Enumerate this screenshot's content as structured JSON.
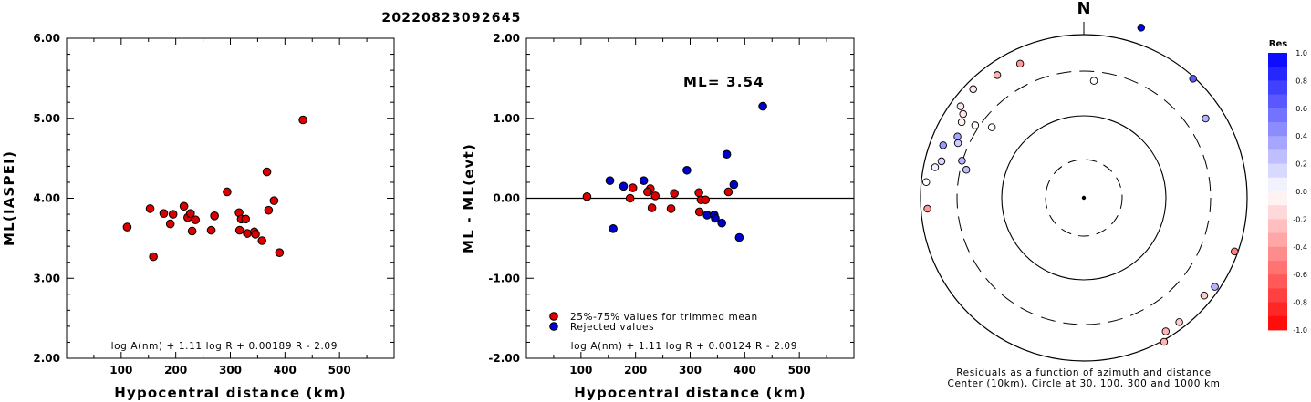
{
  "title": "20220823092645",
  "chart_data": [
    {
      "type": "scatter",
      "xlabel": "Hypocentral distance (km)",
      "ylabel": "ML(IASPEI)",
      "xlim": [
        0,
        600
      ],
      "ylim": [
        2.0,
        6.0
      ],
      "xticks": [
        "100",
        "200",
        "300",
        "400",
        "500"
      ],
      "yticks": [
        "2.00",
        "3.00",
        "4.00",
        "5.00",
        "6.00"
      ],
      "formula": "log A(nm) + 1.11 log R + 0.00189 R - 2.09",
      "series": [
        {
          "color": "#dd0000",
          "points": [
            [
              111,
              3.64
            ],
            [
              153,
              3.87
            ],
            [
              159,
              3.27
            ],
            [
              178,
              3.81
            ],
            [
              190,
              3.68
            ],
            [
              195,
              3.8
            ],
            [
              215,
              3.9
            ],
            [
              222,
              3.76
            ],
            [
              227,
              3.81
            ],
            [
              230,
              3.59
            ],
            [
              236,
              3.73
            ],
            [
              265,
              3.6
            ],
            [
              271,
              3.78
            ],
            [
              294,
              4.08
            ],
            [
              316,
              3.82
            ],
            [
              317,
              3.6
            ],
            [
              320,
              3.74
            ],
            [
              328,
              3.74
            ],
            [
              331,
              3.56
            ],
            [
              344,
              3.58
            ],
            [
              346,
              3.55
            ],
            [
              358,
              3.47
            ],
            [
              367,
              4.33
            ],
            [
              370,
              3.85
            ],
            [
              380,
              3.97
            ],
            [
              390,
              3.32
            ],
            [
              433,
              4.98
            ]
          ]
        }
      ]
    },
    {
      "type": "scatter",
      "xlabel": "Hypocentral distance (km)",
      "ylabel": "ML - ML(evt)",
      "xlim": [
        0,
        600
      ],
      "ylim": [
        -2.0,
        2.0
      ],
      "xticks": [
        "100",
        "200",
        "300",
        "400",
        "500"
      ],
      "yticks": [
        "-2.00",
        "-1.00",
        "0.00",
        "1.00",
        "2.00"
      ],
      "annotation": "ML= 3.54",
      "zero_line": true,
      "formula": "log A(nm) + 1.11 log R + 0.00124 R - 2.09",
      "series": [
        {
          "name": "25%-75% values for trimmed mean",
          "color": "#dd0000",
          "points": [
            [
              111,
              0.02
            ],
            [
              195,
              0.13
            ],
            [
              190,
              0.0
            ],
            [
              227,
              0.12
            ],
            [
              222,
              0.08
            ],
            [
              236,
              0.03
            ],
            [
              230,
              -0.12
            ],
            [
              265,
              -0.13
            ],
            [
              271,
              0.06
            ],
            [
              316,
              0.07
            ],
            [
              317,
              -0.17
            ],
            [
              320,
              -0.02
            ],
            [
              328,
              -0.02
            ],
            [
              370,
              0.08
            ]
          ]
        },
        {
          "name": "Rejected values",
          "color": "#0000cc",
          "points": [
            [
              153,
              0.22
            ],
            [
              159,
              -0.38
            ],
            [
              178,
              0.15
            ],
            [
              215,
              0.22
            ],
            [
              294,
              0.35
            ],
            [
              331,
              -0.21
            ],
            [
              344,
              -0.21
            ],
            [
              346,
              -0.25
            ],
            [
              358,
              -0.31
            ],
            [
              367,
              0.55
            ],
            [
              380,
              0.17
            ],
            [
              390,
              -0.49
            ],
            [
              433,
              1.15
            ]
          ]
        }
      ]
    },
    {
      "type": "polar-scatter",
      "north_label": "N",
      "caption_line1": "Residuals as a function of azimuth and distance",
      "caption_line2": "Center (10km), Circle at 30, 100, 300 and 1000 km",
      "colorbar_title": "Res",
      "colorbar_ticks": [
        "1.0",
        "0.8",
        "0.6",
        "0.4",
        "0.2",
        "0.0",
        "-0.2",
        "-0.4",
        "-0.6",
        "-0.8",
        "-1.0"
      ],
      "stations": [
        {
          "azimuth": 18.6,
          "dist_frac": 1.1,
          "res": 1.0
        },
        {
          "azimuth": 42.5,
          "dist_frac": 0.99,
          "res": 0.65
        },
        {
          "azimuth": 56.9,
          "dist_frac": 0.89,
          "res": 0.3
        },
        {
          "azimuth": 4.9,
          "dist_frac": 0.72,
          "res": 0.0
        },
        {
          "azimuth": -25.4,
          "dist_frac": 0.91,
          "res": -0.4
        },
        {
          "azimuth": -35.2,
          "dist_frac": 0.92,
          "res": -0.3
        },
        {
          "azimuth": -45.5,
          "dist_frac": 0.95,
          "res": -0.1
        },
        {
          "azimuth": -53.4,
          "dist_frac": 0.94,
          "res": -0.1
        },
        {
          "azimuth": -55.2,
          "dist_frac": 0.9,
          "res": -0.1
        },
        {
          "azimuth": -58.2,
          "dist_frac": 0.88,
          "res": -0.05
        },
        {
          "azimuth": -56.3,
          "dist_frac": 0.8,
          "res": 0.0
        },
        {
          "azimuth": -52.5,
          "dist_frac": 0.71,
          "res": 0.0
        },
        {
          "azimuth": -64.1,
          "dist_frac": 0.86,
          "res": 0.35
        },
        {
          "azimuth": -66.5,
          "dist_frac": 0.84,
          "res": 0.2
        },
        {
          "azimuth": -73.1,
          "dist_frac": 0.78,
          "res": 0.3
        },
        {
          "azimuth": -76.6,
          "dist_frac": 0.74,
          "res": 0.25
        },
        {
          "azimuth": -69.5,
          "dist_frac": 0.92,
          "res": 0.4
        },
        {
          "azimuth": -75.6,
          "dist_frac": 0.9,
          "res": 0.15
        },
        {
          "azimuth": -78.4,
          "dist_frac": 0.93,
          "res": 0.05
        },
        {
          "azimuth": -84.3,
          "dist_frac": 0.97,
          "res": 0.0
        },
        {
          "azimuth": -94.0,
          "dist_frac": 0.96,
          "res": -0.4
        },
        {
          "azimuth": 109.6,
          "dist_frac": 0.98,
          "res": -0.5
        },
        {
          "azimuth": 124.2,
          "dist_frac": 0.97,
          "res": 0.3
        },
        {
          "azimuth": 129.1,
          "dist_frac": 0.95,
          "res": -0.2
        },
        {
          "azimuth": 142.5,
          "dist_frac": 0.96,
          "res": -0.2
        },
        {
          "azimuth": 148.5,
          "dist_frac": 0.96,
          "res": -0.3
        },
        {
          "azimuth": 150.9,
          "dist_frac": 1.01,
          "res": -0.3
        }
      ]
    }
  ]
}
